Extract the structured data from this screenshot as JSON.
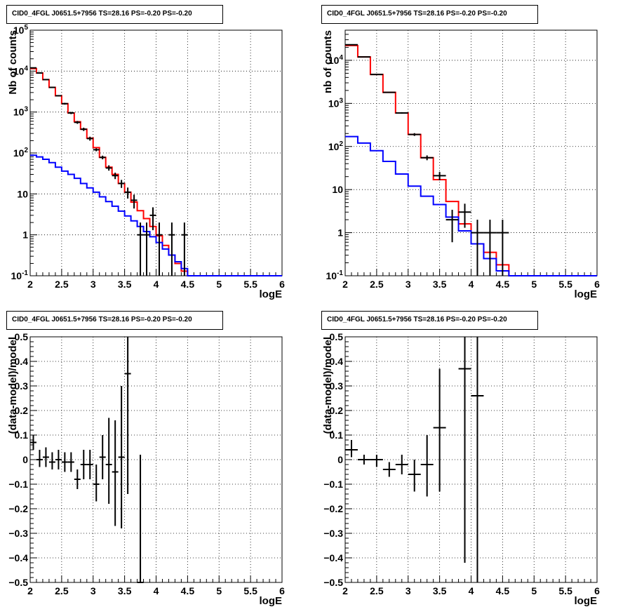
{
  "chart_data": [
    {
      "type": "line",
      "panel": "top-left",
      "title": "CID0_4FGL J0651.5+7956 TS=28.16 PS=-0.20 PS=-0.20",
      "xlabel": "logE",
      "ylabel": "Nb of counts",
      "xlim": [
        2,
        6
      ],
      "ylim": [
        0.1,
        100000
      ],
      "yscale": "log",
      "grid": true,
      "x_ticks": [
        "2",
        "2.5",
        "3",
        "3.5",
        "4",
        "4.5",
        "5",
        "5.5",
        "6"
      ],
      "y_ticks": [
        "10^-1",
        "1",
        "10",
        "10^2",
        "10^3",
        "10^4",
        "10^5"
      ],
      "bin_edges": [
        2.0,
        2.1,
        2.2,
        2.3,
        2.4,
        2.5,
        2.6,
        2.7,
        2.8,
        2.9,
        3.0,
        3.1,
        3.2,
        3.3,
        3.4,
        3.5,
        3.6,
        3.7,
        3.8,
        3.9,
        4.0,
        4.1,
        4.2,
        4.3,
        4.4,
        4.5,
        4.6,
        4.7,
        4.8,
        4.9,
        5.0,
        5.1,
        5.2,
        5.3,
        5.4,
        5.5,
        5.6,
        5.7,
        5.8,
        5.9,
        6.0
      ],
      "series": [
        {
          "color": "#ff0000",
          "values": [
            11500,
            9000,
            6200,
            4000,
            2500,
            1600,
            950,
            580,
            380,
            230,
            135,
            78,
            45,
            30,
            18,
            11,
            6.3,
            3.9,
            2.5,
            1.6,
            0.95,
            0.55,
            0.32,
            0.2,
            0.13,
            0.1,
            0.1,
            0.1,
            0.1,
            0.1,
            0.1,
            0.1,
            0.1,
            0.1,
            0.1,
            0.1,
            0.1,
            0.1,
            0.1,
            0.1
          ]
        },
        {
          "color": "#0000ff",
          "values": [
            88,
            80,
            70,
            58,
            45,
            36,
            30,
            24,
            18,
            14,
            11,
            8.5,
            6.5,
            5.0,
            3.8,
            2.9,
            2.2,
            1.6,
            1.2,
            0.9,
            0.65,
            0.45,
            0.32,
            0.22,
            0.15,
            0.1,
            0.1,
            0.1,
            0.1,
            0.1,
            0.1,
            0.1,
            0.1,
            0.1,
            0.1,
            0.1,
            0.1,
            0.1,
            0.1,
            0.1
          ]
        }
      ],
      "data_points": [
        {
          "x": 2.05,
          "y": 12000,
          "lo": 11800,
          "hi": 12200
        },
        {
          "x": 2.15,
          "y": 9000,
          "lo": 8800,
          "hi": 9200
        },
        {
          "x": 2.25,
          "y": 6200,
          "lo": 6050,
          "hi": 6350
        },
        {
          "x": 2.35,
          "y": 4000,
          "lo": 3870,
          "hi": 4130
        },
        {
          "x": 2.45,
          "y": 2500,
          "lo": 2400,
          "hi": 2600
        },
        {
          "x": 2.55,
          "y": 1600,
          "lo": 1520,
          "hi": 1680
        },
        {
          "x": 2.65,
          "y": 950,
          "lo": 890,
          "hi": 1010
        },
        {
          "x": 2.75,
          "y": 560,
          "lo": 515,
          "hi": 605
        },
        {
          "x": 2.85,
          "y": 380,
          "lo": 345,
          "hi": 415
        },
        {
          "x": 2.95,
          "y": 225,
          "lo": 200,
          "hi": 250
        },
        {
          "x": 3.05,
          "y": 120,
          "lo": 110,
          "hi": 130
        },
        {
          "x": 3.15,
          "y": 78,
          "lo": 70,
          "hi": 86
        },
        {
          "x": 3.25,
          "y": 43,
          "lo": 37,
          "hi": 50
        },
        {
          "x": 3.35,
          "y": 28,
          "lo": 23,
          "hi": 33
        },
        {
          "x": 3.45,
          "y": 18,
          "lo": 14,
          "hi": 22
        },
        {
          "x": 3.55,
          "y": 11,
          "lo": 7.7,
          "hi": 14.3
        },
        {
          "x": 3.65,
          "y": 7,
          "lo": 4.4,
          "hi": 9.6
        },
        {
          "x": 3.75,
          "y": 1,
          "lo": 0.1,
          "hi": 2
        },
        {
          "x": 3.85,
          "y": 1,
          "lo": 0.1,
          "hi": 2
        },
        {
          "x": 3.95,
          "y": 3,
          "lo": 1.3,
          "hi": 4.7
        },
        {
          "x": 4.05,
          "y": 1,
          "lo": 0.1,
          "hi": 2
        },
        {
          "x": 4.25,
          "y": 1,
          "lo": 0.1,
          "hi": 2
        },
        {
          "x": 4.45,
          "y": 1,
          "lo": 0.1,
          "hi": 2
        }
      ]
    },
    {
      "type": "line",
      "panel": "top-right",
      "title": "CID0_4FGL J0651.5+7956 TS=28.16 PS=-0.20 PS=-0.20",
      "xlabel": "logE",
      "ylabel": "nb of counts",
      "xlim": [
        2,
        6
      ],
      "ylim": [
        0.1,
        50000
      ],
      "yscale": "log",
      "grid": true,
      "x_ticks": [
        "2",
        "2.5",
        "3",
        "3.5",
        "4",
        "4.5",
        "5",
        "5.5",
        "6"
      ],
      "y_ticks": [
        "10^-1",
        "1",
        "10",
        "10^2",
        "10^3",
        "10^4"
      ],
      "bin_edges": [
        2.0,
        2.2,
        2.4,
        2.6,
        2.8,
        3.0,
        3.2,
        3.4,
        3.6,
        3.8,
        4.0,
        4.2,
        4.4,
        4.6,
        4.8,
        5.0,
        5.2,
        5.4,
        5.6,
        5.8,
        6.0
      ],
      "series": [
        {
          "color": "#ff0000",
          "values": [
            22000,
            12000,
            4700,
            1800,
            600,
            190,
            55,
            17,
            5.3,
            1.6,
            0.55,
            0.35,
            0.18,
            0.1,
            0.1,
            0.1,
            0.1,
            0.1,
            0.1,
            0.1
          ]
        },
        {
          "color": "#0000ff",
          "values": [
            170,
            120,
            80,
            45,
            23,
            12,
            7,
            4.5,
            2.3,
            1.1,
            0.55,
            0.25,
            0.13,
            0.1,
            0.1,
            0.1,
            0.1,
            0.1,
            0.1,
            0.1
          ]
        }
      ],
      "data_points": [
        {
          "x": 2.1,
          "y": 23000,
          "lo": 22800,
          "hi": 23200
        },
        {
          "x": 2.3,
          "y": 12000,
          "lo": 11800,
          "hi": 12200
        },
        {
          "x": 2.5,
          "y": 4700,
          "lo": 4600,
          "hi": 4800
        },
        {
          "x": 2.7,
          "y": 1800,
          "lo": 1750,
          "hi": 1850
        },
        {
          "x": 2.9,
          "y": 600,
          "lo": 575,
          "hi": 625
        },
        {
          "x": 3.1,
          "y": 190,
          "lo": 176,
          "hi": 204
        },
        {
          "x": 3.3,
          "y": 55,
          "lo": 48,
          "hi": 62
        },
        {
          "x": 3.5,
          "y": 21,
          "lo": 16.4,
          "hi": 25.6
        },
        {
          "x": 3.7,
          "y": 2,
          "lo": 0.6,
          "hi": 3.4
        },
        {
          "x": 3.9,
          "y": 3,
          "lo": 1.3,
          "hi": 4.7
        },
        {
          "x": 4.1,
          "y": 1,
          "lo": 0.1,
          "hi": 2
        },
        {
          "x": 4.3,
          "y": 1,
          "lo": 0.1,
          "hi": 2
        },
        {
          "x": 4.5,
          "y": 1,
          "lo": 0.1,
          "hi": 2
        }
      ]
    },
    {
      "type": "scatter",
      "panel": "bottom-left",
      "title": "CID0_4FGL J0651.5+7956 TS=28.16 PS=-0.20 PS=-0.20",
      "xlabel": "logE",
      "ylabel": "(data-model)/model",
      "xlim": [
        2,
        6
      ],
      "ylim": [
        -0.5,
        0.5
      ],
      "grid": true,
      "bin_width": 0.1,
      "x_ticks": [
        "2",
        "2.5",
        "3",
        "3.5",
        "4",
        "4.5",
        "5",
        "5.5",
        "6"
      ],
      "y_ticks": [
        "−0.5",
        "−0.4",
        "−0.3",
        "−0.2",
        "−0.1",
        "0",
        "0.1",
        "0.2",
        "0.3",
        "0.4",
        "0.5"
      ],
      "data_points": [
        {
          "x": 2.05,
          "y": 0.07,
          "lo": 0.04,
          "hi": 0.1
        },
        {
          "x": 2.15,
          "y": 0.0,
          "lo": -0.03,
          "hi": 0.04
        },
        {
          "x": 2.25,
          "y": 0.01,
          "lo": -0.03,
          "hi": 0.05
        },
        {
          "x": 2.35,
          "y": -0.01,
          "lo": -0.04,
          "hi": 0.03
        },
        {
          "x": 2.45,
          "y": 0.0,
          "lo": -0.04,
          "hi": 0.04
        },
        {
          "x": 2.55,
          "y": -0.01,
          "lo": -0.05,
          "hi": 0.03
        },
        {
          "x": 2.65,
          "y": -0.01,
          "lo": -0.05,
          "hi": 0.03
        },
        {
          "x": 2.75,
          "y": -0.08,
          "lo": -0.12,
          "hi": -0.04
        },
        {
          "x": 2.85,
          "y": -0.02,
          "lo": -0.08,
          "hi": 0.04
        },
        {
          "x": 2.95,
          "y": -0.02,
          "lo": -0.08,
          "hi": 0.04
        },
        {
          "x": 3.05,
          "y": -0.1,
          "lo": -0.17,
          "hi": -0.02
        },
        {
          "x": 3.15,
          "y": 0.01,
          "lo": -0.08,
          "hi": 0.1
        },
        {
          "x": 3.25,
          "y": -0.02,
          "lo": -0.18,
          "hi": 0.17
        },
        {
          "x": 3.35,
          "y": -0.05,
          "lo": -0.27,
          "hi": 0.16
        },
        {
          "x": 3.45,
          "y": 0.01,
          "lo": -0.28,
          "hi": 0.3
        },
        {
          "x": 3.55,
          "y": 0.35,
          "lo": -0.14,
          "hi": 0.5
        },
        {
          "x": 3.75,
          "y": -0.5,
          "lo": -0.5,
          "hi": 0.02
        }
      ]
    },
    {
      "type": "scatter",
      "panel": "bottom-right",
      "title": "CID0_4FGL J0651.5+7956 TS=28.16 PS=-0.20 PS=-0.20",
      "xlabel": "logE",
      "ylabel": "(data-model)/model",
      "xlim": [
        2,
        6
      ],
      "ylim": [
        -0.5,
        0.5
      ],
      "grid": true,
      "bin_width": 0.2,
      "x_ticks": [
        "2",
        "2.5",
        "3",
        "3.5",
        "4",
        "4.5",
        "5",
        "5.5",
        "6"
      ],
      "y_ticks": [
        "−0.5",
        "−0.4",
        "−0.3",
        "−0.2",
        "−0.1",
        "0",
        "0.1",
        "0.2",
        "0.3",
        "0.4",
        "0.5"
      ],
      "data_points": [
        {
          "x": 2.1,
          "y": 0.04,
          "lo": 0.01,
          "hi": 0.08
        },
        {
          "x": 2.3,
          "y": 0.0,
          "lo": -0.02,
          "hi": 0.02
        },
        {
          "x": 2.5,
          "y": 0.0,
          "lo": -0.03,
          "hi": 0.02
        },
        {
          "x": 2.7,
          "y": -0.04,
          "lo": -0.07,
          "hi": -0.01
        },
        {
          "x": 2.9,
          "y": -0.02,
          "lo": -0.06,
          "hi": 0.02
        },
        {
          "x": 3.1,
          "y": -0.06,
          "lo": -0.13,
          "hi": 0.0
        },
        {
          "x": 3.3,
          "y": -0.02,
          "lo": -0.15,
          "hi": 0.1
        },
        {
          "x": 3.5,
          "y": 0.13,
          "lo": -0.13,
          "hi": 0.37
        },
        {
          "x": 3.9,
          "y": 0.37,
          "lo": -0.42,
          "hi": 0.5
        },
        {
          "x": 4.1,
          "y": 0.26,
          "lo": -0.5,
          "hi": 0.5
        }
      ]
    }
  ]
}
